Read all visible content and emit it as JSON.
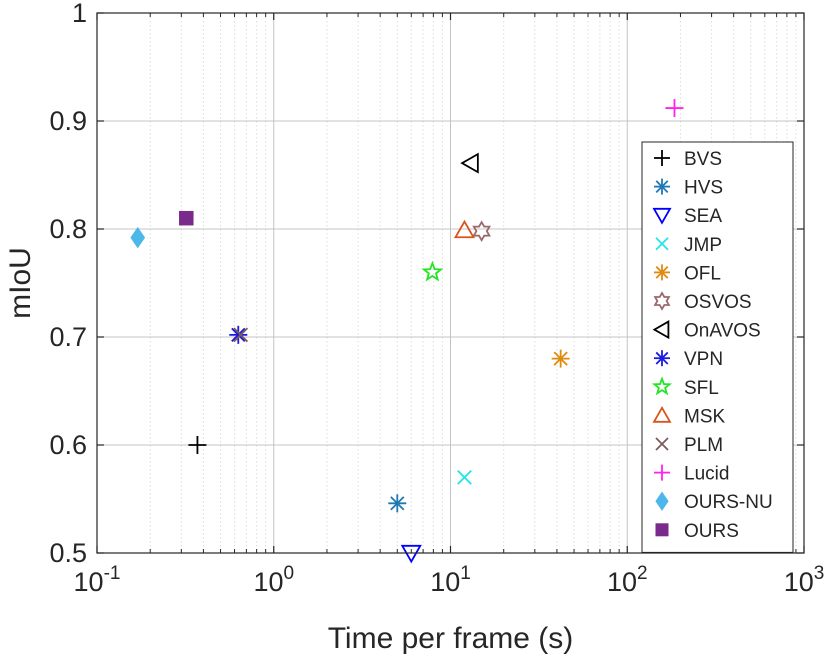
{
  "chart_data": {
    "type": "scatter",
    "title": "",
    "xlabel": "Time per frame (s)",
    "ylabel": "mIoU",
    "xscale": "log",
    "xlim": [
      0.1,
      1000
    ],
    "ylim": [
      0.5,
      1.0
    ],
    "xticks": [
      {
        "base": "10",
        "exp": "-1",
        "value": 0.1
      },
      {
        "base": "10",
        "exp": "0",
        "value": 1
      },
      {
        "base": "10",
        "exp": "1",
        "value": 10
      },
      {
        "base": "10",
        "exp": "2",
        "value": 100
      },
      {
        "base": "10",
        "exp": "3",
        "value": 1000
      }
    ],
    "yticks": [
      {
        "label": "0.5",
        "value": 0.5
      },
      {
        "label": "0.6",
        "value": 0.6
      },
      {
        "label": "0.7",
        "value": 0.7
      },
      {
        "label": "0.8",
        "value": 0.8
      },
      {
        "label": "0.9",
        "value": 0.9
      },
      {
        "label": "1",
        "value": 1.0
      }
    ],
    "grid": true,
    "legend_position": "right",
    "series": [
      {
        "name": "BVS",
        "marker": "plus",
        "color": "#000000",
        "x": 0.37,
        "y": 0.6
      },
      {
        "name": "HVS",
        "marker": "asterisk",
        "color": "#1f77b4",
        "x": 5.0,
        "y": 0.546
      },
      {
        "name": "SEA",
        "marker": "triangle-down",
        "color": "#0000ff",
        "x": 6.0,
        "y": 0.5
      },
      {
        "name": "JMP",
        "marker": "x",
        "color": "#22e6e6",
        "x": 12.0,
        "y": 0.57
      },
      {
        "name": "OFL",
        "marker": "asterisk",
        "color": "#e08a10",
        "x": 42.0,
        "y": 0.68
      },
      {
        "name": "OSVOS",
        "marker": "hexagram",
        "color": "#9a6a6a",
        "x": 15.0,
        "y": 0.798
      },
      {
        "name": "OnAVOS",
        "marker": "triangle-left",
        "color": "#000000",
        "x": 13.0,
        "y": 0.861
      },
      {
        "name": "VPN",
        "marker": "asterisk",
        "color": "#1a1ae0",
        "x": 0.63,
        "y": 0.702
      },
      {
        "name": "SFL",
        "marker": "pentagram",
        "color": "#22e622",
        "x": 7.9,
        "y": 0.76
      },
      {
        "name": "MSK",
        "marker": "triangle-up",
        "color": "#d9541a",
        "x": 12.0,
        "y": 0.799
      },
      {
        "name": "PLM",
        "marker": "x",
        "color": "#7f5a5a",
        "x": 0.65,
        "y": 0.702
      },
      {
        "name": "Lucid",
        "marker": "plus",
        "color": "#ff22ee",
        "x": 185.0,
        "y": 0.912
      },
      {
        "name": "OURS-NU",
        "marker": "diamond-filled",
        "color": "#4cb8ea",
        "x": 0.17,
        "y": 0.792
      },
      {
        "name": "OURS",
        "marker": "square-filled",
        "color": "#7a2a8a",
        "x": 0.32,
        "y": 0.81
      }
    ]
  }
}
